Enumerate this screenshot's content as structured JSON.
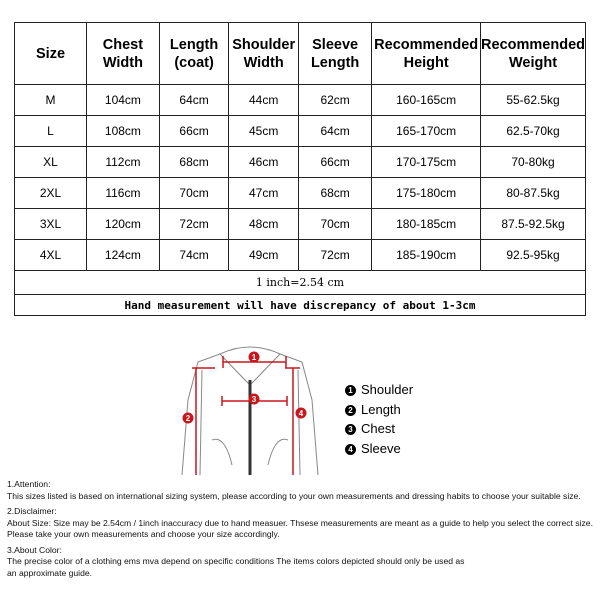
{
  "table": {
    "headers": [
      "Size",
      "Chest Width",
      "Length (coat)",
      "Shoulder Width",
      "Sleeve Length",
      "Recommended Height",
      "Recommended Weight"
    ],
    "rows": [
      [
        "M",
        "104cm",
        "64cm",
        "44cm",
        "62cm",
        "160-165cm",
        "55-62.5kg"
      ],
      [
        "L",
        "108cm",
        "66cm",
        "45cm",
        "64cm",
        "165-170cm",
        "62.5-70kg"
      ],
      [
        "XL",
        "112cm",
        "68cm",
        "46cm",
        "66cm",
        "170-175cm",
        "70-80kg"
      ],
      [
        "2XL",
        "116cm",
        "70cm",
        "47cm",
        "68cm",
        "175-180cm",
        "80-87.5kg"
      ],
      [
        "3XL",
        "120cm",
        "72cm",
        "48cm",
        "70cm",
        "180-185cm",
        "87.5-92.5kg"
      ],
      [
        "4XL",
        "124cm",
        "74cm",
        "49cm",
        "72cm",
        "185-190cm",
        "92.5-95kg"
      ]
    ],
    "inch_note": "1 inch=2.54 cm",
    "hand_note": "Hand measurement will have discrepancy of about 1-3cm"
  },
  "diagram": {
    "markers": [
      "1",
      "2",
      "3",
      "4"
    ],
    "legend": [
      {
        "num": "1",
        "label": "Shoulder"
      },
      {
        "num": "2",
        "label": "Length"
      },
      {
        "num": "3",
        "label": "Chest"
      },
      {
        "num": "4",
        "label": "Sleeve"
      }
    ],
    "accent": "#c8161d"
  },
  "notes": [
    {
      "title": "1.Attention:",
      "lines": [
        "This sizes listed is based on international sizing system, please according to your own measurements and dressing habits to choose your suitable size."
      ]
    },
    {
      "title": "2.Disclaimer:",
      "lines": [
        "About Size: Size may be 2.54cm / 1inch inaccuracy due to hand measuer. Thsese measurements are meant as a guide to help you select the correct size.",
        "Please take your own measurements and choose your size accordingly."
      ]
    },
    {
      "title": "3.About Color:",
      "lines": [
        "The precise color of a clothing ems mva depend on specific conditions The items colors depicted should only be used as",
        "an approximate guide."
      ]
    }
  ]
}
